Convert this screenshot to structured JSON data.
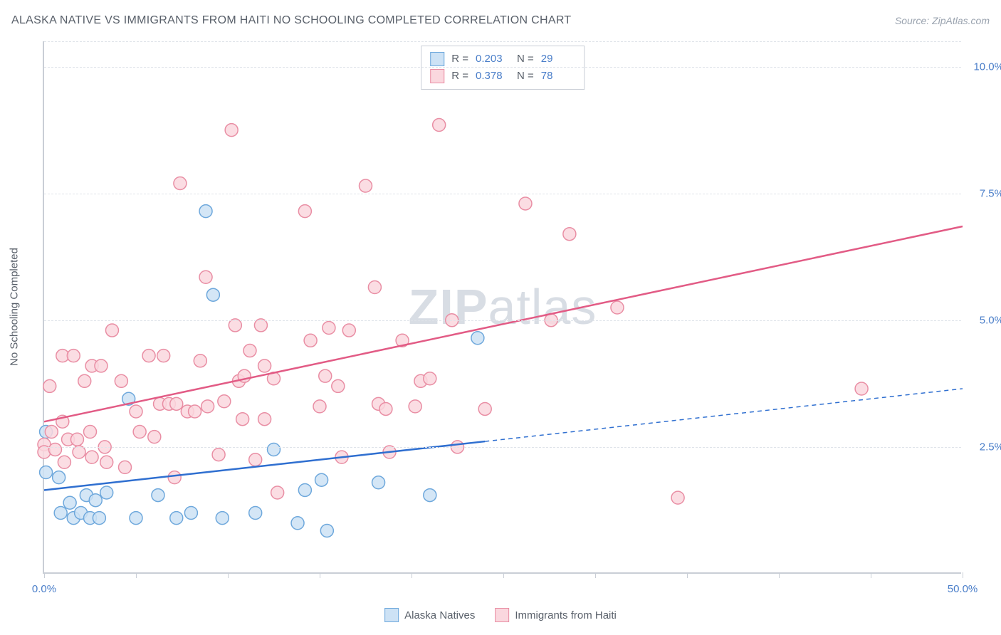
{
  "title": "ALASKA NATIVE VS IMMIGRANTS FROM HAITI NO SCHOOLING COMPLETED CORRELATION CHART",
  "source": "Source: ZipAtlas.com",
  "watermark": "ZIPatlas",
  "yaxis_title": "No Schooling Completed",
  "chart": {
    "type": "scatter",
    "xlim": [
      0,
      50
    ],
    "ylim": [
      0,
      10.5
    ],
    "x_tick_positions": [
      0,
      5,
      10,
      15,
      20,
      25,
      30,
      35,
      40,
      45,
      50
    ],
    "x_tick_labels": {
      "0": "0.0%",
      "50": "50.0%"
    },
    "y_ticks": [
      2.5,
      5.0,
      7.5,
      10.0
    ],
    "y_tick_labels": [
      "2.5%",
      "5.0%",
      "7.5%",
      "10.0%"
    ],
    "grid_color": "#dfe3e9",
    "axis_color": "#c9ced6",
    "background_color": "#ffffff",
    "label_color": "#4a7ec9",
    "text_color": "#59606a",
    "title_fontsize": 16,
    "label_fontsize": 15
  },
  "series": [
    {
      "name": "Alaska Natives",
      "marker_fill": "#cde2f5",
      "marker_stroke": "#6ea8dc",
      "marker_radius": 9,
      "line_color": "#2f6fd0",
      "line_width": 2.5,
      "line_dash_extrapolate": "6,5",
      "R": "0.203",
      "N": "29",
      "trend": {
        "x1": 0,
        "y1": 1.65,
        "x2": 50,
        "y2": 3.65,
        "x_solid_end": 24
      },
      "points": [
        [
          0.1,
          2.8
        ],
        [
          0.1,
          2.0
        ],
        [
          0.8,
          1.9
        ],
        [
          0.9,
          1.2
        ],
        [
          1.4,
          1.4
        ],
        [
          1.6,
          1.1
        ],
        [
          2.0,
          1.2
        ],
        [
          2.3,
          1.55
        ],
        [
          2.5,
          1.1
        ],
        [
          2.8,
          1.45
        ],
        [
          3.0,
          1.1
        ],
        [
          3.4,
          1.6
        ],
        [
          4.6,
          3.45
        ],
        [
          5.0,
          1.1
        ],
        [
          6.2,
          1.55
        ],
        [
          7.2,
          1.1
        ],
        [
          8.0,
          1.2
        ],
        [
          8.8,
          7.15
        ],
        [
          9.2,
          5.5
        ],
        [
          9.7,
          1.1
        ],
        [
          11.5,
          1.2
        ],
        [
          12.5,
          2.45
        ],
        [
          13.8,
          1.0
        ],
        [
          14.2,
          1.65
        ],
        [
          15.1,
          1.85
        ],
        [
          15.4,
          0.85
        ],
        [
          18.2,
          1.8
        ],
        [
          21.0,
          1.55
        ],
        [
          23.6,
          4.65
        ]
      ]
    },
    {
      "name": "Immigrants from Haiti",
      "marker_fill": "#fad7de",
      "marker_stroke": "#e98ea4",
      "marker_radius": 9,
      "line_color": "#e25b85",
      "line_width": 2.5,
      "R": "0.378",
      "N": "78",
      "trend": {
        "x1": 0,
        "y1": 3.0,
        "x2": 50,
        "y2": 6.85
      },
      "points": [
        [
          0.0,
          2.55
        ],
        [
          0.0,
          2.4
        ],
        [
          0.3,
          3.7
        ],
        [
          0.4,
          2.8
        ],
        [
          0.6,
          2.45
        ],
        [
          1.0,
          3.0
        ],
        [
          1.0,
          4.3
        ],
        [
          1.1,
          2.2
        ],
        [
          1.3,
          2.65
        ],
        [
          1.6,
          4.3
        ],
        [
          1.8,
          2.65
        ],
        [
          1.9,
          2.4
        ],
        [
          2.2,
          3.8
        ],
        [
          2.5,
          2.8
        ],
        [
          2.6,
          4.1
        ],
        [
          2.6,
          2.3
        ],
        [
          3.1,
          4.1
        ],
        [
          3.3,
          2.5
        ],
        [
          3.4,
          2.2
        ],
        [
          3.7,
          4.8
        ],
        [
          4.2,
          3.8
        ],
        [
          4.4,
          2.1
        ],
        [
          5.0,
          3.2
        ],
        [
          5.2,
          2.8
        ],
        [
          5.7,
          4.3
        ],
        [
          6.0,
          2.7
        ],
        [
          6.3,
          3.35
        ],
        [
          6.5,
          4.3
        ],
        [
          6.8,
          3.35
        ],
        [
          7.1,
          1.9
        ],
        [
          7.2,
          3.35
        ],
        [
          7.4,
          7.7
        ],
        [
          7.8,
          3.2
        ],
        [
          8.2,
          3.2
        ],
        [
          8.5,
          4.2
        ],
        [
          8.8,
          5.85
        ],
        [
          8.9,
          3.3
        ],
        [
          9.5,
          2.35
        ],
        [
          9.8,
          3.4
        ],
        [
          10.2,
          8.75
        ],
        [
          10.4,
          4.9
        ],
        [
          10.6,
          3.8
        ],
        [
          10.8,
          3.05
        ],
        [
          10.9,
          3.9
        ],
        [
          11.2,
          4.4
        ],
        [
          11.5,
          2.25
        ],
        [
          11.8,
          4.9
        ],
        [
          12.0,
          3.05
        ],
        [
          12.0,
          4.1
        ],
        [
          12.5,
          3.85
        ],
        [
          12.7,
          1.6
        ],
        [
          14.2,
          7.15
        ],
        [
          14.5,
          4.6
        ],
        [
          15.0,
          3.3
        ],
        [
          15.3,
          3.9
        ],
        [
          15.5,
          4.85
        ],
        [
          16.0,
          3.7
        ],
        [
          16.2,
          2.3
        ],
        [
          16.6,
          4.8
        ],
        [
          17.5,
          7.65
        ],
        [
          18.0,
          5.65
        ],
        [
          18.2,
          3.35
        ],
        [
          18.6,
          3.25
        ],
        [
          18.8,
          2.4
        ],
        [
          19.5,
          4.6
        ],
        [
          20.2,
          3.3
        ],
        [
          20.5,
          3.8
        ],
        [
          21.0,
          3.85
        ],
        [
          21.5,
          8.85
        ],
        [
          22.2,
          5.0
        ],
        [
          22.5,
          2.5
        ],
        [
          24.0,
          3.25
        ],
        [
          26.2,
          7.3
        ],
        [
          27.6,
          5.0
        ],
        [
          28.6,
          6.7
        ],
        [
          31.2,
          5.25
        ],
        [
          34.5,
          1.5
        ],
        [
          44.5,
          3.65
        ]
      ]
    }
  ],
  "stats_box": {
    "R_label": "R =",
    "N_label": "N ="
  },
  "legend": {
    "items": [
      "Alaska Natives",
      "Immigrants from Haiti"
    ]
  }
}
